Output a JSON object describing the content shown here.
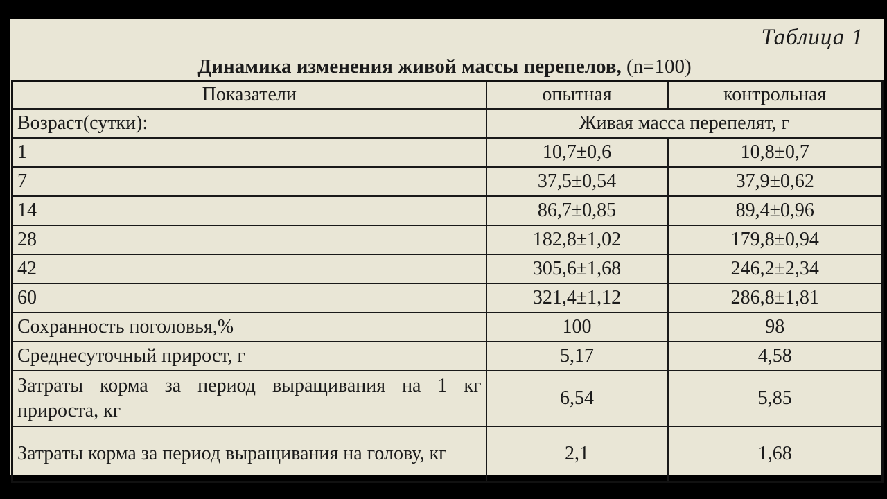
{
  "page": {
    "table_label": "Таблица 1",
    "title_main": "Динамика изменения живой массы перепелов,",
    "title_n": "(n=100)"
  },
  "colors": {
    "paper_background": "#e9e6d6",
    "frame_background": "#000000",
    "text": "#1b1b1b",
    "border": "#191919"
  },
  "table": {
    "header": {
      "col1": "Показатели",
      "col2": "опытная",
      "col3": "контрольная"
    },
    "subheader": {
      "label": "Возраст(сутки):",
      "merged": "Живая масса перепелят, г"
    },
    "rows": [
      {
        "label": "1",
        "experimental": "10,7±0,6",
        "control": "10,8±0,7"
      },
      {
        "label": "7",
        "experimental": "37,5±0,54",
        "control": "37,9±0,62"
      },
      {
        "label": "14",
        "experimental": "86,7±0,85",
        "control": "89,4±0,96"
      },
      {
        "label": "28",
        "experimental": "182,8±1,02",
        "control": "179,8±0,94"
      },
      {
        "label": "42",
        "experimental": "305,6±1,68",
        "control": "246,2±2,34"
      },
      {
        "label": "60",
        "experimental": "321,4±1,12",
        "control": "286,8±1,81"
      },
      {
        "label": "Сохранность поголовья,%",
        "experimental": "100",
        "control": "98"
      },
      {
        "label": "Среднесуточный прирост, г",
        "experimental": "5,17",
        "control": "4,58"
      },
      {
        "label": "Затраты корма за период выращивания на 1 кг прироста, кг",
        "experimental": "6,54",
        "control": "5,85"
      },
      {
        "label": "Затраты корма за период выращивания на голову, кг",
        "experimental": "2,1",
        "control": "1,68"
      }
    ]
  },
  "chart_data": {
    "type": "table",
    "title": "Динамика изменения живой массы перепелов, (n=100)",
    "columns": [
      "Показатели",
      "опытная",
      "контрольная"
    ],
    "section_note": "Возраст(сутки): / Живая масса перепелят, г",
    "rows": [
      [
        "1",
        "10,7±0,6",
        "10,8±0,7"
      ],
      [
        "7",
        "37,5±0,54",
        "37,9±0,62"
      ],
      [
        "14",
        "86,7±0,85",
        "89,4±0,96"
      ],
      [
        "28",
        "182,8±1,02",
        "179,8±0,94"
      ],
      [
        "42",
        "305,6±1,68",
        "246,2±2,34"
      ],
      [
        "60",
        "321,4±1,12",
        "286,8±1,81"
      ],
      [
        "Сохранность поголовья,%",
        "100",
        "98"
      ],
      [
        "Среднесуточный прирост, г",
        "5,17",
        "4,58"
      ],
      [
        "Затраты корма за период выращивания на 1 кг прироста, кг",
        "6,54",
        "5,85"
      ],
      [
        "Затраты корма за период выращивания на голову, кг",
        "2,1",
        "1,68"
      ]
    ]
  }
}
